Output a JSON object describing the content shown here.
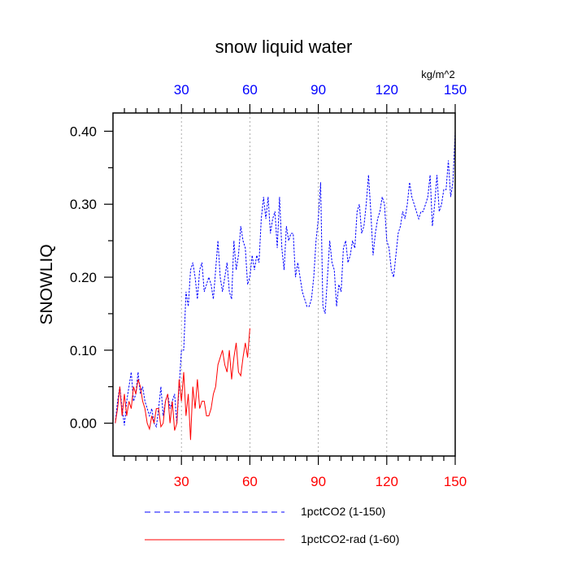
{
  "chart_data": {
    "type": "line",
    "title": "snow liquid water",
    "units": "kg/m^2",
    "ylabel": "SNOWLIQ",
    "xlim": [
      0,
      150
    ],
    "ylim": [
      -0.045,
      0.425
    ],
    "xticks_bottom": [
      "30",
      "60",
      "90",
      "120",
      "150"
    ],
    "xticks_top": [
      "30",
      "60",
      "90",
      "120",
      "150"
    ],
    "yticks": [
      "0.00",
      "0.10",
      "0.20",
      "0.30",
      "0.40"
    ],
    "grid": "vertical dotted lines at 30, 60, 90, 120",
    "legend_position": "bottom",
    "colors": {
      "series1": "#0000ff",
      "series2": "#ff0000",
      "top_axis": "#0000ff",
      "bottom_axis": "#ff0000"
    },
    "series": [
      {
        "name": "1pctCO2 (1-150)",
        "style": "dashed",
        "color": "#0000ff",
        "x_start": 1,
        "values": [
          0.0,
          0.03,
          0.05,
          0.02,
          -0.003,
          0.03,
          0.05,
          0.07,
          0.03,
          0.04,
          0.07,
          0.04,
          0.05,
          0.03,
          0.02,
          0.01,
          0.02,
          0.0,
          -0.005,
          0.02,
          0.05,
          0.01,
          0.03,
          0.04,
          0.02,
          0.03,
          0.04,
          0.0,
          0.05,
          0.1,
          0.1,
          0.18,
          0.16,
          0.21,
          0.22,
          0.2,
          0.17,
          0.21,
          0.22,
          0.18,
          0.19,
          0.2,
          0.19,
          0.17,
          0.21,
          0.25,
          0.2,
          0.18,
          0.2,
          0.22,
          0.18,
          0.17,
          0.25,
          0.21,
          0.23,
          0.27,
          0.25,
          0.24,
          0.19,
          0.2,
          0.23,
          0.21,
          0.23,
          0.22,
          0.28,
          0.31,
          0.28,
          0.31,
          0.26,
          0.28,
          0.29,
          0.24,
          0.31,
          0.24,
          0.21,
          0.27,
          0.25,
          0.26,
          0.26,
          0.2,
          0.22,
          0.2,
          0.18,
          0.17,
          0.16,
          0.16,
          0.17,
          0.2,
          0.25,
          0.28,
          0.33,
          0.16,
          0.15,
          0.2,
          0.25,
          0.22,
          0.21,
          0.16,
          0.19,
          0.18,
          0.24,
          0.25,
          0.22,
          0.23,
          0.25,
          0.24,
          0.29,
          0.3,
          0.26,
          0.27,
          0.3,
          0.34,
          0.29,
          0.23,
          0.26,
          0.28,
          0.29,
          0.31,
          0.3,
          0.25,
          0.24,
          0.21,
          0.2,
          0.23,
          0.26,
          0.27,
          0.29,
          0.28,
          0.3,
          0.33,
          0.31,
          0.3,
          0.29,
          0.28,
          0.29,
          0.29,
          0.3,
          0.31,
          0.34,
          0.27,
          0.3,
          0.34,
          0.29,
          0.3,
          0.32,
          0.32,
          0.36,
          0.31,
          0.33,
          0.4
        ]
      },
      {
        "name": "1pctCO2-rad (1-60)",
        "style": "solid",
        "color": "#ff0000",
        "x_start": 1,
        "values": [
          0.0,
          0.02,
          0.05,
          0.01,
          0.04,
          0.01,
          0.03,
          0.02,
          0.05,
          0.04,
          0.06,
          0.05,
          0.03,
          0.02,
          0.0,
          -0.008,
          0.01,
          0.0,
          0.02,
          0.02,
          -0.005,
          0.0,
          0.03,
          0.04,
          0.0,
          0.03,
          -0.01,
          0.0,
          0.06,
          0.03,
          0.07,
          0.01,
          0.04,
          -0.023,
          0.05,
          0.02,
          0.06,
          0.02,
          0.03,
          0.03,
          0.01,
          0.01,
          0.02,
          0.04,
          0.05,
          0.08,
          0.09,
          0.1,
          0.08,
          0.07,
          0.1,
          0.06,
          0.09,
          0.11,
          0.07,
          0.065,
          0.09,
          0.11,
          0.09,
          0.13
        ]
      }
    ]
  }
}
